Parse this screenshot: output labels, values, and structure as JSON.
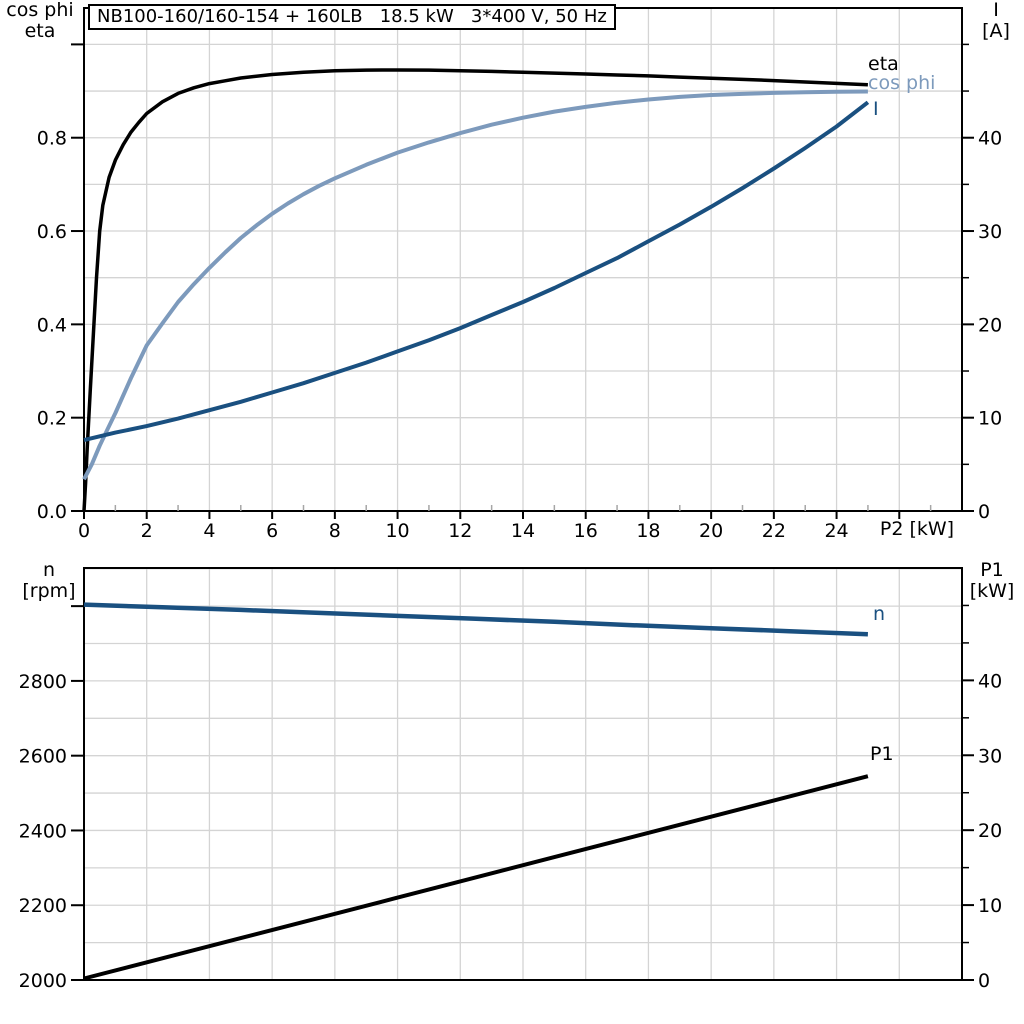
{
  "title": "NB100-160/160-154 + 160LB   18.5 kW   3*400 V, 50 Hz",
  "colors": {
    "eta": "#000000",
    "cos_phi": "#7d9abc",
    "current": "#1a5080",
    "speed": "#1a5080",
    "p1": "#000000",
    "grid": "#d4d4d4",
    "axis": "#000000",
    "minor_tick": "#a6a6a6"
  },
  "labels": {
    "top_left_line1": "cos phi",
    "top_left_line2": "eta",
    "top_right_line1": "I",
    "top_right_line2": "[A]",
    "x_axis_label": "P2 [kW]",
    "bottom_left_line1": "n",
    "bottom_left_line2": "[rpm]",
    "bottom_right_line1": "P1",
    "bottom_right_line2": "[kW]",
    "curve_eta": "eta",
    "curve_cos_phi": "cos phi",
    "curve_current": "I",
    "curve_speed": "n",
    "curve_p1": "P1"
  },
  "chart_data": [
    {
      "type": "line",
      "title": "NB100-160/160-154 + 160LB   18.5 kW   3*400 V, 50 Hz",
      "x_axis": {
        "label": "P2 [kW]",
        "min": 0,
        "max": 28,
        "labeled_ticks": [
          0,
          2,
          4,
          6,
          8,
          10,
          12,
          14,
          16,
          18,
          20,
          22,
          24
        ],
        "unlabeled_major_ticks": [
          26
        ],
        "minor_ticks": [
          1,
          3,
          5,
          7,
          9,
          11,
          13,
          15,
          17,
          19,
          21,
          23,
          25,
          27
        ],
        "grid_values": [
          2,
          4,
          6,
          8,
          10,
          12,
          14,
          16,
          18,
          20,
          22,
          24,
          26
        ]
      },
      "y_left": {
        "label": "cos phi / eta",
        "min": 0,
        "max": 1.078,
        "labeled_ticks": [
          {
            "v": 0,
            "t": "0.0"
          },
          {
            "v": 0.2,
            "t": "0.2"
          },
          {
            "v": 0.4,
            "t": "0.4"
          },
          {
            "v": 0.6,
            "t": "0.6"
          },
          {
            "v": 0.8,
            "t": "0.8"
          }
        ],
        "unlabeled_major_ticks": [
          1.0
        ],
        "grid_values": [
          0.1,
          0.2,
          0.3,
          0.4,
          0.5,
          0.6,
          0.7,
          0.8,
          0.9,
          1.0
        ]
      },
      "y_right": {
        "label": "I [A]",
        "min": 0,
        "max": 53.9,
        "labeled_ticks": [
          {
            "v": 0,
            "t": "0"
          },
          {
            "v": 10,
            "t": "10"
          },
          {
            "v": 20,
            "t": "20"
          },
          {
            "v": 30,
            "t": "30"
          },
          {
            "v": 40,
            "t": "40"
          }
        ],
        "minor_ticks": [
          5,
          15,
          25,
          35,
          45,
          50
        ]
      },
      "series": [
        {
          "name": "eta",
          "axis": "left",
          "color": "#000000",
          "width": 3.5,
          "points": [
            [
              0,
              0
            ],
            [
              0.05,
              0.06
            ],
            [
              0.1,
              0.13
            ],
            [
              0.2,
              0.26
            ],
            [
              0.3,
              0.38
            ],
            [
              0.4,
              0.5
            ],
            [
              0.5,
              0.6
            ],
            [
              0.6,
              0.655
            ],
            [
              0.8,
              0.715
            ],
            [
              1,
              0.752
            ],
            [
              1.25,
              0.785
            ],
            [
              1.5,
              0.812
            ],
            [
              1.75,
              0.833
            ],
            [
              2,
              0.852
            ],
            [
              2.5,
              0.877
            ],
            [
              3,
              0.895
            ],
            [
              3.5,
              0.907
            ],
            [
              4,
              0.916
            ],
            [
              4.5,
              0.922
            ],
            [
              5,
              0.928
            ],
            [
              6,
              0.9355
            ],
            [
              7,
              0.9405
            ],
            [
              8,
              0.9435
            ],
            [
              9,
              0.945
            ],
            [
              10,
              0.9452
            ],
            [
              11,
              0.945
            ],
            [
              12,
              0.9437
            ],
            [
              13,
              0.9422
            ],
            [
              14,
              0.9405
            ],
            [
              15,
              0.9385
            ],
            [
              16,
              0.9365
            ],
            [
              17,
              0.9345
            ],
            [
              18,
              0.9325
            ],
            [
              19,
              0.93
            ],
            [
              20,
              0.9275
            ],
            [
              21,
              0.925
            ],
            [
              22,
              0.9225
            ],
            [
              23,
              0.9195
            ],
            [
              24,
              0.9165
            ],
            [
              25,
              0.9135
            ]
          ]
        },
        {
          "name": "cos-phi",
          "axis": "left",
          "color": "#7d9abc",
          "width": 4,
          "points": [
            [
              0,
              0.068
            ],
            [
              0.25,
              0.1
            ],
            [
              0.5,
              0.14
            ],
            [
              0.75,
              0.175
            ],
            [
              1,
              0.21
            ],
            [
              1.5,
              0.285
            ],
            [
              2,
              0.355
            ],
            [
              2.5,
              0.402
            ],
            [
              3,
              0.448
            ],
            [
              3.5,
              0.486
            ],
            [
              4,
              0.521
            ],
            [
              4.5,
              0.554
            ],
            [
              5,
              0.585
            ],
            [
              5.5,
              0.612
            ],
            [
              6,
              0.637
            ],
            [
              6.5,
              0.659
            ],
            [
              7,
              0.679
            ],
            [
              7.5,
              0.697
            ],
            [
              8,
              0.713
            ],
            [
              9,
              0.742
            ],
            [
              10,
              0.768
            ],
            [
              11,
              0.79
            ],
            [
              12,
              0.81
            ],
            [
              13,
              0.828
            ],
            [
              14,
              0.843
            ],
            [
              15,
              0.856
            ],
            [
              16,
              0.866
            ],
            [
              17,
              0.875
            ],
            [
              18,
              0.882
            ],
            [
              19,
              0.8875
            ],
            [
              20,
              0.8915
            ],
            [
              21,
              0.894
            ],
            [
              22,
              0.896
            ],
            [
              23,
              0.8975
            ],
            [
              24,
              0.8985
            ],
            [
              25,
              0.899
            ]
          ]
        },
        {
          "name": "current",
          "axis": "right",
          "color": "#1a5080",
          "width": 4,
          "points": [
            [
              0,
              7.6
            ],
            [
              1,
              8.4
            ],
            [
              2,
              9.1
            ],
            [
              3,
              9.9
            ],
            [
              4,
              10.8
            ],
            [
              5,
              11.7
            ],
            [
              6,
              12.7
            ],
            [
              7,
              13.7
            ],
            [
              8,
              14.8
            ],
            [
              9,
              15.9
            ],
            [
              10,
              17.1
            ],
            [
              11,
              18.3
            ],
            [
              12,
              19.6
            ],
            [
              13,
              21
            ],
            [
              14,
              22.4
            ],
            [
              15,
              23.9
            ],
            [
              16,
              25.5
            ],
            [
              17,
              27.1
            ],
            [
              18,
              28.9
            ],
            [
              19,
              30.7
            ],
            [
              20,
              32.6
            ],
            [
              21,
              34.6
            ],
            [
              22,
              36.7
            ],
            [
              23,
              38.9
            ],
            [
              24,
              41.2
            ],
            [
              25,
              43.8
            ]
          ]
        }
      ]
    },
    {
      "type": "line",
      "x_axis": {
        "label": "",
        "min": 0,
        "max": 28,
        "labeled_ticks": [],
        "unlabeled_major_ticks": [],
        "minor_ticks": [],
        "grid_values": [
          2,
          4,
          6,
          8,
          10,
          12,
          14,
          16,
          18,
          20,
          22,
          24,
          26
        ]
      },
      "y_left": {
        "label": "n [rpm]",
        "min": 2000,
        "max": 3102,
        "labeled_ticks": [
          {
            "v": 2000,
            "t": "2000"
          },
          {
            "v": 2200,
            "t": "2200"
          },
          {
            "v": 2400,
            "t": "2400"
          },
          {
            "v": 2600,
            "t": "2600"
          },
          {
            "v": 2800,
            "t": "2800"
          }
        ],
        "unlabeled_major_ticks": [
          3000
        ],
        "grid_values": [
          2100,
          2200,
          2300,
          2400,
          2500,
          2600,
          2700,
          2800,
          2900,
          3000,
          3100
        ]
      },
      "y_right": {
        "label": "P1 [kW]",
        "min": 0,
        "max": 55,
        "labeled_ticks": [
          {
            "v": 0,
            "t": "0"
          },
          {
            "v": 10,
            "t": "10"
          },
          {
            "v": 20,
            "t": "20"
          },
          {
            "v": 30,
            "t": "30"
          },
          {
            "v": 40,
            "t": "40"
          }
        ],
        "minor_ticks": [
          5,
          15,
          25,
          35,
          45,
          50
        ]
      },
      "series": [
        {
          "name": "speed",
          "axis": "left",
          "color": "#1a5080",
          "width": 4.5,
          "points": [
            [
              0,
              3004
            ],
            [
              2.5,
              2997
            ],
            [
              5,
              2990
            ],
            [
              7.5,
              2982
            ],
            [
              10,
              2974
            ],
            [
              12.5,
              2966
            ],
            [
              15,
              2958
            ],
            [
              17.5,
              2949
            ],
            [
              20,
              2941
            ],
            [
              22.5,
              2933
            ],
            [
              25,
              2925
            ]
          ]
        },
        {
          "name": "p1",
          "axis": "right",
          "color": "#000000",
          "width": 4,
          "points": [
            [
              0,
              0.2
            ],
            [
              5,
              5.6
            ],
            [
              10,
              11
            ],
            [
              15,
              16.4
            ],
            [
              20,
              21.8
            ],
            [
              25,
              27.2
            ]
          ]
        }
      ]
    }
  ]
}
